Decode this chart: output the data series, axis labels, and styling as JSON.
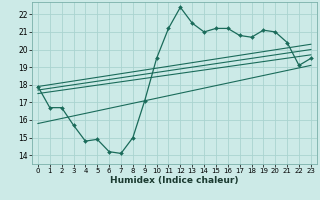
{
  "xlabel": "Humidex (Indice chaleur)",
  "ylabel": "",
  "background_color": "#cceae7",
  "grid_color": "#aad4d0",
  "line_color": "#1a6b5a",
  "xlim": [
    -0.5,
    23.5
  ],
  "ylim": [
    13.5,
    22.7
  ],
  "x_ticks": [
    0,
    1,
    2,
    3,
    4,
    5,
    6,
    7,
    8,
    9,
    10,
    11,
    12,
    13,
    14,
    15,
    16,
    17,
    18,
    19,
    20,
    21,
    22,
    23
  ],
  "y_ticks": [
    14,
    15,
    16,
    17,
    18,
    19,
    20,
    21,
    22
  ],
  "main_series_x": [
    0,
    1,
    2,
    3,
    4,
    5,
    6,
    7,
    8,
    9,
    10,
    11,
    12,
    13,
    14,
    15,
    16,
    17,
    18,
    19,
    20,
    21,
    22,
    23
  ],
  "main_series_y": [
    17.9,
    16.7,
    16.7,
    15.7,
    14.8,
    14.9,
    14.2,
    14.1,
    15.0,
    17.1,
    19.5,
    21.2,
    22.4,
    21.5,
    21.0,
    21.2,
    21.2,
    20.8,
    20.7,
    21.1,
    21.0,
    20.4,
    19.1,
    19.5
  ],
  "trend1_x": [
    0,
    23
  ],
  "trend1_y": [
    17.5,
    19.7
  ],
  "trend2_x": [
    0,
    23
  ],
  "trend2_y": [
    17.7,
    20.0
  ],
  "trend3_x": [
    0,
    23
  ],
  "trend3_y": [
    17.9,
    20.3
  ],
  "trend4_x": [
    0,
    23
  ],
  "trend4_y": [
    15.8,
    19.1
  ]
}
